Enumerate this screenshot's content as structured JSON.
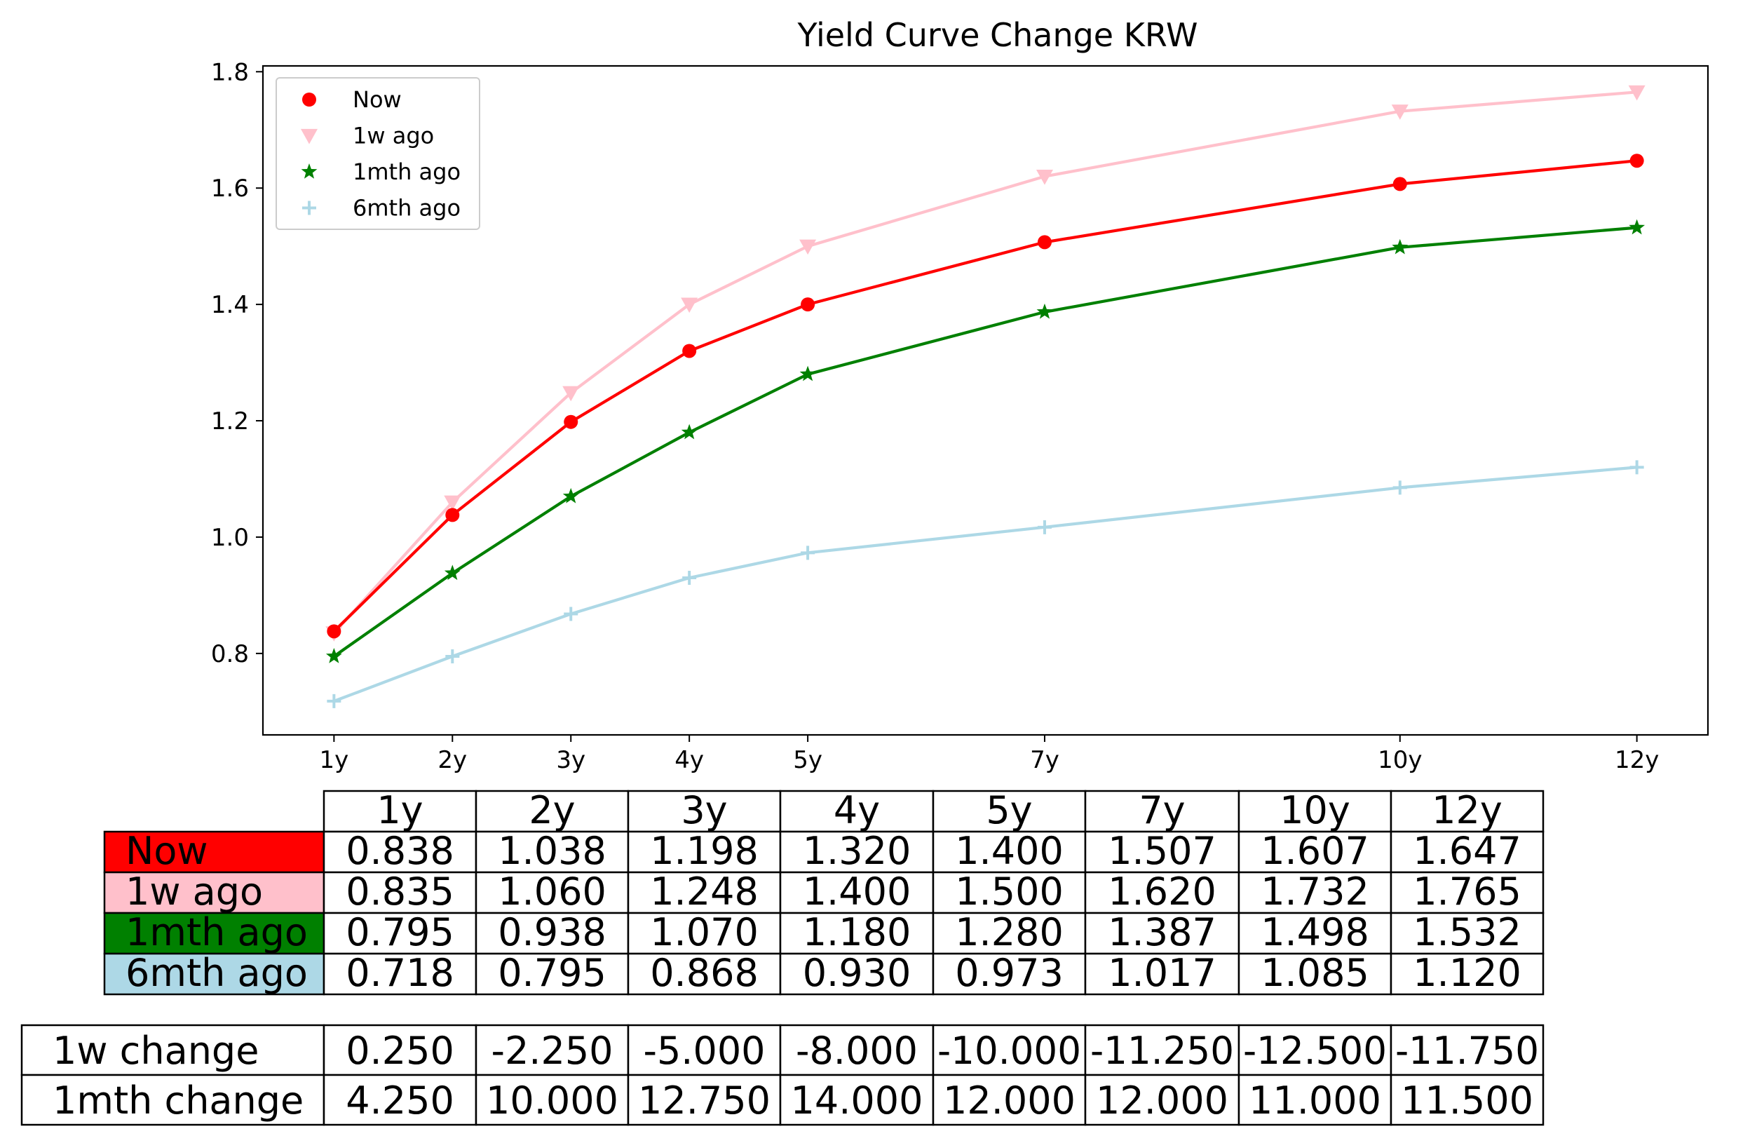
{
  "chart_data": {
    "type": "line",
    "title": "Yield Curve Change KRW",
    "xlabel": "",
    "ylabel": "",
    "x": [
      1,
      2,
      3,
      4,
      5,
      7,
      10,
      12
    ],
    "categories": [
      "1y",
      "2y",
      "3y",
      "4y",
      "5y",
      "7y",
      "10y",
      "12y"
    ],
    "ylim": [
      0.66,
      1.81
    ],
    "yticks": [
      "0.8",
      "1.0",
      "1.2",
      "1.4",
      "1.6",
      "1.8"
    ],
    "ytick_values": [
      0.8,
      1.0,
      1.2,
      1.4,
      1.6,
      1.8
    ],
    "grid": false,
    "legend_position": "top-left",
    "series": [
      {
        "name": "Now",
        "color": "#ff0000",
        "marker": "circle",
        "values": [
          0.838,
          1.038,
          1.198,
          1.32,
          1.4,
          1.507,
          1.607,
          1.647
        ],
        "labels": [
          "0.838",
          "1.038",
          "1.198",
          "1.320",
          "1.400",
          "1.507",
          "1.607",
          "1.647"
        ]
      },
      {
        "name": "1w ago",
        "color": "#ffc0cb",
        "marker": "triangle-down",
        "values": [
          0.835,
          1.06,
          1.248,
          1.4,
          1.5,
          1.62,
          1.732,
          1.765
        ],
        "labels": [
          "0.835",
          "1.060",
          "1.248",
          "1.400",
          "1.500",
          "1.620",
          "1.732",
          "1.765"
        ]
      },
      {
        "name": "1mth ago",
        "color": "#008000",
        "marker": "star",
        "values": [
          0.795,
          0.938,
          1.07,
          1.18,
          1.28,
          1.387,
          1.498,
          1.532
        ],
        "labels": [
          "0.795",
          "0.938",
          "1.070",
          "1.180",
          "1.280",
          "1.387",
          "1.498",
          "1.532"
        ]
      },
      {
        "name": "6mth ago",
        "color": "#add8e6",
        "marker": "plus",
        "values": [
          0.718,
          0.795,
          0.868,
          0.93,
          0.973,
          1.017,
          1.085,
          1.12
        ],
        "labels": [
          "0.718",
          "0.795",
          "0.868",
          "0.930",
          "0.973",
          "1.017",
          "1.085",
          "1.120"
        ]
      }
    ],
    "change_table": [
      {
        "label": "1w change",
        "values": [
          "0.250",
          "-2.250",
          "-5.000",
          "-8.000",
          "-10.000",
          "-11.250",
          "-12.500",
          "-11.750"
        ]
      },
      {
        "label": "1mth change",
        "values": [
          "4.250",
          "10.000",
          "12.750",
          "14.000",
          "12.000",
          "12.000",
          "11.000",
          "11.500"
        ]
      }
    ]
  }
}
